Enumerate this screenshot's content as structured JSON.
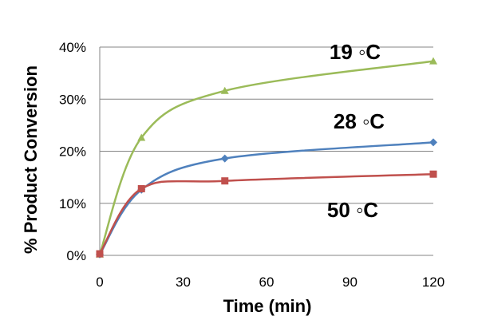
{
  "chart_data": {
    "type": "line",
    "title": "",
    "xlabel": "Time (min)",
    "ylabel": "% Product Conversion",
    "xlim": [
      0,
      120
    ],
    "ylim": [
      0,
      40
    ],
    "xticks": [
      "0",
      "30",
      "60",
      "90",
      "120"
    ],
    "yticks": [
      "0%",
      "10%",
      "20%",
      "30%",
      "40%"
    ],
    "grid": "horizontal",
    "series": [
      {
        "name": "19 ◦C",
        "color": "#9BBB59",
        "marker": "triangle",
        "x": [
          0,
          15,
          45,
          120
        ],
        "y": [
          0.2,
          22.6,
          31.6,
          37.3
        ]
      },
      {
        "name": "28 ◦C",
        "color": "#4F81BD",
        "marker": "diamond",
        "x": [
          0,
          15,
          45,
          120
        ],
        "y": [
          0.2,
          12.6,
          18.6,
          21.7
        ]
      },
      {
        "name": "50 ◦C",
        "color": "#C0504D",
        "marker": "square",
        "x": [
          0,
          15,
          45,
          120
        ],
        "y": [
          0.3,
          12.8,
          14.3,
          15.6
        ]
      }
    ]
  }
}
